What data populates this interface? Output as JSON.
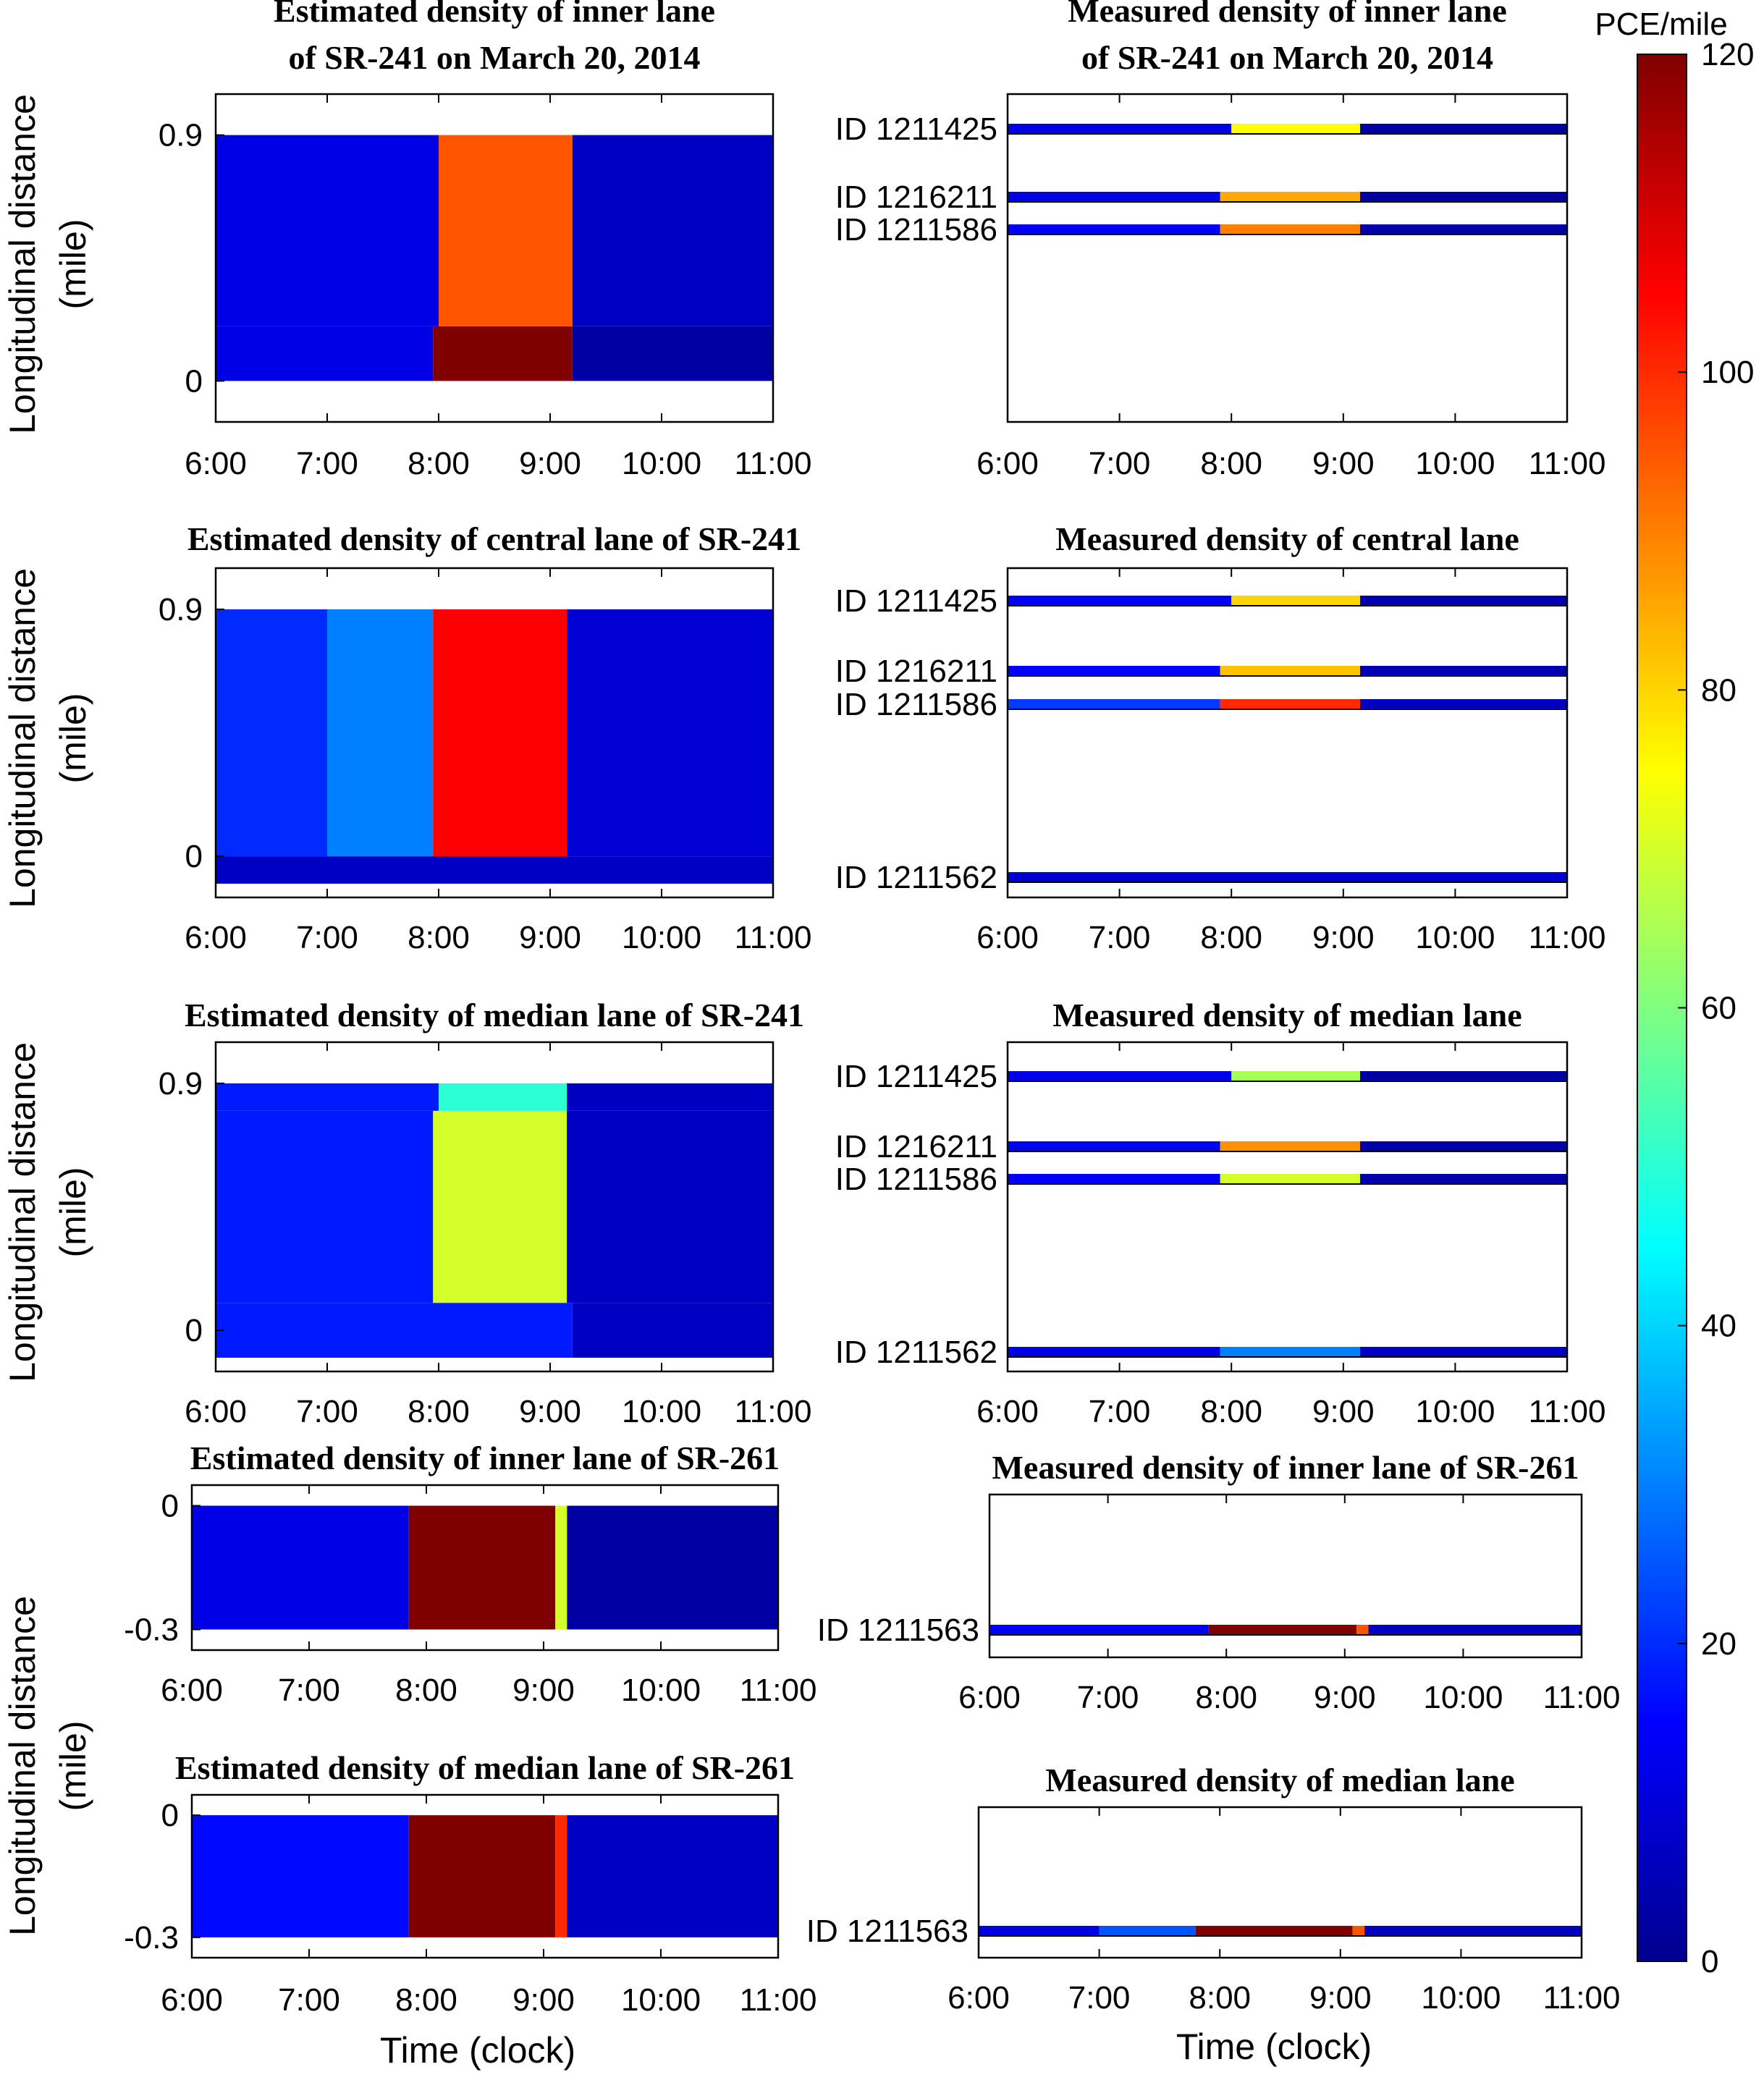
{
  "figure": {
    "time_axis_label": "Time (clock)",
    "y_axis_label_line1": "Longitudinal distance",
    "y_axis_label_line2": "(mile)",
    "colorbar": {
      "label": "PCE/mile",
      "range": [
        0,
        120
      ],
      "ticks": [
        "0",
        "20",
        "40",
        "60",
        "80",
        "100",
        "120"
      ],
      "colormap": "jet"
    }
  },
  "chart_data": [
    {
      "id": "est_inner_241",
      "type": "heatmap",
      "title_lines": [
        "Estimated density of inner lane",
        "of SR-241 on March 20, 2014"
      ],
      "xlim": [
        "6:00",
        "11:00"
      ],
      "xticks": [
        "6:00",
        "7:00",
        "8:00",
        "9:00",
        "10:00",
        "11:00"
      ],
      "ylim": [
        -0.15,
        1.05
      ],
      "yticks": [
        {
          "value": 0,
          "label": "0"
        },
        {
          "value": 0.9,
          "label": "0.9"
        }
      ],
      "rows": [
        {
          "y0": 0.0,
          "y1": 0.2,
          "segments": [
            {
              "t0": 6.0,
              "t1": 7.95,
              "v": 12
            },
            {
              "t0": 7.95,
              "t1": 9.2,
              "v": 120
            },
            {
              "t0": 9.2,
              "t1": 11.0,
              "v": 4
            }
          ]
        },
        {
          "y0": 0.2,
          "y1": 0.9,
          "segments": [
            {
              "t0": 6.0,
              "t1": 8.0,
              "v": 12
            },
            {
              "t0": 8.0,
              "t1": 9.2,
              "v": 95
            },
            {
              "t0": 9.2,
              "t1": 11.0,
              "v": 8
            }
          ]
        }
      ]
    },
    {
      "id": "meas_inner_241",
      "type": "heatmap",
      "title_lines": [
        "Measured density of inner lane",
        "of SR-241 on March 20, 2014"
      ],
      "xlim": [
        "6:00",
        "11:00"
      ],
      "xticks": [
        "6:00",
        "7:00",
        "8:00",
        "9:00",
        "10:00",
        "11:00"
      ],
      "sensors": [
        {
          "label": "ID 1211425",
          "segments": [
            {
              "t0": 6.0,
              "t1": 8.0,
              "v": 12
            },
            {
              "t0": 8.0,
              "t1": 9.15,
              "v": 75
            },
            {
              "t0": 9.15,
              "t1": 11.0,
              "v": 4
            }
          ]
        },
        {
          "label": "ID 1216211",
          "segments": [
            {
              "t0": 6.0,
              "t1": 7.9,
              "v": 12
            },
            {
              "t0": 7.9,
              "t1": 9.15,
              "v": 85
            },
            {
              "t0": 9.15,
              "t1": 11.0,
              "v": 4
            }
          ]
        },
        {
          "label": "ID 1211586",
          "segments": [
            {
              "t0": 6.0,
              "t1": 7.9,
              "v": 14
            },
            {
              "t0": 7.9,
              "t1": 9.15,
              "v": 90
            },
            {
              "t0": 9.15,
              "t1": 11.0,
              "v": 5
            }
          ]
        }
      ]
    },
    {
      "id": "est_central_241",
      "type": "heatmap",
      "title_lines": [
        "Estimated density of central lane of SR-241"
      ],
      "xlim": [
        "6:00",
        "11:00"
      ],
      "xticks": [
        "6:00",
        "7:00",
        "8:00",
        "9:00",
        "10:00",
        "11:00"
      ],
      "ylim": [
        -0.15,
        1.05
      ],
      "yticks": [
        {
          "value": 0,
          "label": "0"
        },
        {
          "value": 0.9,
          "label": "0.9"
        }
      ],
      "rows": [
        {
          "y0": -0.1,
          "y1": 0.0,
          "segments": [
            {
              "t0": 6.0,
              "t1": 11.0,
              "v": 8
            }
          ]
        },
        {
          "y0": 0.0,
          "y1": 0.9,
          "segments": [
            {
              "t0": 6.0,
              "t1": 7.0,
              "v": 20
            },
            {
              "t0": 7.0,
              "t1": 7.95,
              "v": 30
            },
            {
              "t0": 7.95,
              "t1": 9.15,
              "v": 105
            },
            {
              "t0": 9.15,
              "t1": 11.0,
              "v": 10
            }
          ]
        }
      ]
    },
    {
      "id": "meas_central",
      "type": "heatmap",
      "title_lines": [
        "Measured density  of central lane"
      ],
      "xlim": [
        "6:00",
        "11:00"
      ],
      "xticks": [
        "6:00",
        "7:00",
        "8:00",
        "9:00",
        "10:00",
        "11:00"
      ],
      "sensors": [
        {
          "label": "ID 1211425",
          "segments": [
            {
              "t0": 6.0,
              "t1": 8.0,
              "v": 15
            },
            {
              "t0": 8.0,
              "t1": 9.15,
              "v": 80
            },
            {
              "t0": 9.15,
              "t1": 11.0,
              "v": 6
            }
          ]
        },
        {
          "label": "ID 1216211",
          "segments": [
            {
              "t0": 6.0,
              "t1": 7.9,
              "v": 15
            },
            {
              "t0": 7.9,
              "t1": 9.15,
              "v": 82
            },
            {
              "t0": 9.15,
              "t1": 11.0,
              "v": 6
            }
          ]
        },
        {
          "label": "ID 1211586",
          "segments": [
            {
              "t0": 6.0,
              "t1": 7.9,
              "v": 22
            },
            {
              "t0": 7.9,
              "t1": 9.15,
              "v": 100
            },
            {
              "t0": 9.15,
              "t1": 11.0,
              "v": 8
            }
          ]
        },
        {
          "label": "ID 1211562",
          "segments": [
            {
              "t0": 6.0,
              "t1": 11.0,
              "v": 10
            }
          ]
        }
      ]
    },
    {
      "id": "est_median_241",
      "type": "heatmap",
      "title_lines": [
        "Estimated density of median lane of SR-241"
      ],
      "xlim": [
        "6:00",
        "11:00"
      ],
      "xticks": [
        "6:00",
        "7:00",
        "8:00",
        "9:00",
        "10:00",
        "11:00"
      ],
      "ylim": [
        -0.15,
        1.05
      ],
      "yticks": [
        {
          "value": 0,
          "label": "0"
        },
        {
          "value": 0.9,
          "label": "0.9"
        }
      ],
      "rows": [
        {
          "y0": -0.1,
          "y1": 0.1,
          "segments": [
            {
              "t0": 6.0,
              "t1": 9.2,
              "v": 18
            },
            {
              "t0": 9.2,
              "t1": 11.0,
              "v": 8
            }
          ]
        },
        {
          "y0": 0.1,
          "y1": 0.8,
          "segments": [
            {
              "t0": 6.0,
              "t1": 7.95,
              "v": 18
            },
            {
              "t0": 7.95,
              "t1": 9.15,
              "v": 70
            },
            {
              "t0": 9.15,
              "t1": 11.0,
              "v": 8
            }
          ]
        },
        {
          "y0": 0.8,
          "y1": 0.9,
          "segments": [
            {
              "t0": 6.0,
              "t1": 8.0,
              "v": 18
            },
            {
              "t0": 8.0,
              "t1": 9.15,
              "v": 50
            },
            {
              "t0": 9.15,
              "t1": 11.0,
              "v": 8
            }
          ]
        }
      ]
    },
    {
      "id": "meas_median",
      "type": "heatmap",
      "title_lines": [
        "Measured density  of median lane"
      ],
      "xlim": [
        "6:00",
        "11:00"
      ],
      "xticks": [
        "6:00",
        "7:00",
        "8:00",
        "9:00",
        "10:00",
        "11:00"
      ],
      "sensors": [
        {
          "label": "ID 1211425",
          "segments": [
            {
              "t0": 6.0,
              "t1": 8.0,
              "v": 12
            },
            {
              "t0": 8.0,
              "t1": 9.15,
              "v": 65
            },
            {
              "t0": 9.15,
              "t1": 11.0,
              "v": 4
            }
          ]
        },
        {
          "label": "ID 1216211",
          "segments": [
            {
              "t0": 6.0,
              "t1": 7.9,
              "v": 14
            },
            {
              "t0": 7.9,
              "t1": 9.15,
              "v": 88
            },
            {
              "t0": 9.15,
              "t1": 11.0,
              "v": 5
            }
          ]
        },
        {
          "label": "ID 1211586",
          "segments": [
            {
              "t0": 6.0,
              "t1": 7.9,
              "v": 14
            },
            {
              "t0": 7.9,
              "t1": 9.15,
              "v": 70
            },
            {
              "t0": 9.15,
              "t1": 11.0,
              "v": 5
            }
          ]
        },
        {
          "label": "ID 1211562",
          "segments": [
            {
              "t0": 6.0,
              "t1": 7.9,
              "v": 12
            },
            {
              "t0": 7.9,
              "t1": 9.15,
              "v": 30
            },
            {
              "t0": 9.15,
              "t1": 11.0,
              "v": 8
            }
          ]
        }
      ]
    },
    {
      "id": "est_inner_261",
      "type": "heatmap",
      "title_lines": [
        "Estimated density of inner lane of SR-261"
      ],
      "xlim": [
        "6:00",
        "11:00"
      ],
      "xticks": [
        "6:00",
        "7:00",
        "8:00",
        "9:00",
        "10:00",
        "11:00"
      ],
      "ylim": [
        -0.35,
        0.05
      ],
      "yticks": [
        {
          "value": 0,
          "label": "0"
        },
        {
          "value": -0.3,
          "label": "-0.3"
        }
      ],
      "rows": [
        {
          "y0": -0.3,
          "y1": 0.0,
          "segments": [
            {
              "t0": 6.0,
              "t1": 7.85,
              "v": 12
            },
            {
              "t0": 7.85,
              "t1": 9.1,
              "v": 120
            },
            {
              "t0": 9.1,
              "t1": 9.2,
              "v": 70
            },
            {
              "t0": 9.2,
              "t1": 11.0,
              "v": 4
            }
          ]
        }
      ]
    },
    {
      "id": "meas_inner_261",
      "type": "heatmap",
      "title_lines": [
        "Measured density of inner lane of SR-261"
      ],
      "xlim": [
        "6:00",
        "11:00"
      ],
      "xticks": [
        "6:00",
        "7:00",
        "8:00",
        "9:00",
        "10:00",
        "11:00"
      ],
      "sensors": [
        {
          "label": "ID 1211563",
          "segments": [
            {
              "t0": 6.0,
              "t1": 7.85,
              "v": 14
            },
            {
              "t0": 7.85,
              "t1": 9.1,
              "v": 120
            },
            {
              "t0": 9.1,
              "t1": 9.2,
              "v": 95
            },
            {
              "t0": 9.2,
              "t1": 11.0,
              "v": 8
            }
          ]
        }
      ]
    },
    {
      "id": "est_median_261",
      "type": "heatmap",
      "title_lines": [
        "Estimated density of median lane of SR-261"
      ],
      "xlim": [
        "6:00",
        "11:00"
      ],
      "xticks": [
        "6:00",
        "7:00",
        "8:00",
        "9:00",
        "10:00",
        "11:00"
      ],
      "ylim": [
        -0.35,
        0.05
      ],
      "yticks": [
        {
          "value": 0,
          "label": "0"
        },
        {
          "value": -0.3,
          "label": "-0.3"
        }
      ],
      "rows": [
        {
          "y0": -0.3,
          "y1": 0.0,
          "segments": [
            {
              "t0": 6.0,
              "t1": 7.85,
              "v": 16
            },
            {
              "t0": 7.85,
              "t1": 9.1,
              "v": 120
            },
            {
              "t0": 9.1,
              "t1": 9.2,
              "v": 100
            },
            {
              "t0": 9.2,
              "t1": 11.0,
              "v": 8
            }
          ]
        }
      ]
    },
    {
      "id": "meas_median_261",
      "type": "heatmap",
      "title_lines": [
        "Measured density of median lane"
      ],
      "xlim": [
        "6:00",
        "11:00"
      ],
      "xticks": [
        "6:00",
        "7:00",
        "8:00",
        "9:00",
        "10:00",
        "11:00"
      ],
      "sensors": [
        {
          "label": "ID 1211563",
          "segments": [
            {
              "t0": 6.0,
              "t1": 7.0,
              "v": 12
            },
            {
              "t0": 7.0,
              "t1": 7.8,
              "v": 25
            },
            {
              "t0": 7.8,
              "t1": 9.1,
              "v": 120
            },
            {
              "t0": 9.1,
              "t1": 9.2,
              "v": 95
            },
            {
              "t0": 9.2,
              "t1": 11.0,
              "v": 8
            }
          ]
        }
      ]
    }
  ]
}
